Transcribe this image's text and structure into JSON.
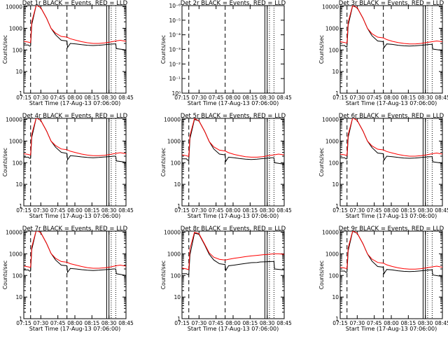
{
  "colors": {
    "events": "#000000",
    "lld": "#ff0000",
    "axes": "#000000",
    "background": "#ffffff"
  },
  "xlabel": "Start Time (17-Aug-13 07:06:00)",
  "ylabel": "Counts/sec",
  "xticks": [
    "07:15",
    "07:30",
    "07:45",
    "08:00",
    "08:15",
    "08:30",
    "08:45"
  ],
  "chart_data": [
    {
      "type": "line",
      "title": "Det 1r BLACK = Events, RED = LLD",
      "scale": "log",
      "ytick_labels": [
        "1",
        "10",
        "100",
        "1000",
        "10000"
      ],
      "xlim_min": [
        9,
        99
      ],
      "ylim_log10": [
        0,
        4.05
      ],
      "dashed_lines_min": [
        15,
        47
      ],
      "solid_lines_min": [
        82,
        84
      ],
      "dotted_lines_min": [
        86,
        90
      ],
      "series": [
        {
          "name": "Events",
          "x": [
            9,
            13,
            14,
            15,
            16,
            20,
            24,
            29,
            33,
            37,
            42,
            47,
            47.5,
            50,
            55,
            60,
            65,
            70,
            75,
            78,
            83,
            88,
            90,
            90.5,
            99
          ],
          "y": [
            170,
            170,
            150,
            150,
            1500,
            12000,
            9000,
            3000,
            1000,
            500,
            280,
            260,
            130,
            200,
            190,
            175,
            165,
            160,
            165,
            170,
            180,
            190,
            190,
            115,
            100
          ]
        },
        {
          "name": "LLD",
          "x": [
            9,
            13,
            14,
            15,
            16,
            20,
            24,
            29,
            33,
            37,
            42,
            47,
            50,
            55,
            60,
            65,
            70,
            75,
            80,
            85,
            90,
            94,
            99
          ],
          "y": [
            250,
            230,
            220,
            220,
            2000,
            12000,
            9000,
            3000,
            1000,
            600,
            420,
            390,
            330,
            280,
            240,
            215,
            200,
            200,
            210,
            230,
            260,
            280,
            250
          ]
        }
      ]
    },
    {
      "type": "line",
      "title": "Det 2r BLACK = Events, RED = LLD",
      "scale": "tiny",
      "ytick_labels": [
        "10⁰",
        "10⁻¹",
        "10⁻²",
        "10⁻³",
        "10⁻⁴",
        "10⁻⁵",
        "10⁻⁶"
      ],
      "xlim_min": [
        9,
        99
      ],
      "ylim_log10": [
        0,
        6
      ],
      "dashed_lines_min": [
        15,
        47
      ],
      "solid_lines_min": [
        82,
        84
      ],
      "dotted_lines_min": [
        86,
        90
      ],
      "series": []
    },
    {
      "type": "line",
      "title": "Det 3r BLACK = Events, RED = LLD",
      "scale": "log",
      "ytick_labels": [
        "1",
        "10",
        "100",
        "1000",
        "10000"
      ],
      "xlim_min": [
        9,
        99
      ],
      "ylim_log10": [
        0,
        4.05
      ],
      "dashed_lines_min": [
        15,
        47
      ],
      "solid_lines_min": [
        82,
        84
      ],
      "dotted_lines_min": [
        86,
        90
      ],
      "series": [
        {
          "name": "Events",
          "x": [
            9,
            13,
            14,
            15,
            16,
            20,
            24,
            29,
            33,
            37,
            42,
            47,
            47.5,
            50,
            55,
            60,
            65,
            70,
            75,
            78,
            83,
            88,
            90,
            90.5,
            99
          ],
          "y": [
            160,
            160,
            140,
            140,
            1400,
            11000,
            9000,
            3000,
            1000,
            450,
            260,
            240,
            125,
            190,
            180,
            165,
            155,
            150,
            155,
            160,
            170,
            180,
            180,
            110,
            95
          ]
        },
        {
          "name": "LLD",
          "x": [
            9,
            13,
            14,
            15,
            16,
            20,
            24,
            29,
            33,
            37,
            42,
            47,
            50,
            55,
            60,
            65,
            70,
            75,
            80,
            85,
            90,
            94,
            99
          ],
          "y": [
            240,
            220,
            210,
            210,
            1900,
            11500,
            9000,
            3000,
            1000,
            560,
            390,
            360,
            300,
            250,
            220,
            200,
            190,
            190,
            200,
            220,
            240,
            260,
            240
          ]
        }
      ]
    },
    {
      "type": "line",
      "title": "Det 4r BLACK = Events, RED = LLD",
      "scale": "log",
      "ytick_labels": [
        "1",
        "10",
        "100",
        "1000",
        "10000"
      ],
      "xlim_min": [
        9,
        99
      ],
      "ylim_log10": [
        0,
        4.05
      ],
      "dashed_lines_min": [
        15,
        47
      ],
      "solid_lines_min": [
        82,
        84
      ],
      "dotted_lines_min": [
        86,
        90
      ],
      "series": [
        {
          "name": "Events",
          "x": [
            9,
            13,
            14,
            15,
            16,
            20,
            24,
            29,
            33,
            37,
            42,
            47,
            47.5,
            50,
            55,
            60,
            65,
            70,
            75,
            78,
            83,
            88,
            90,
            90.5,
            99
          ],
          "y": [
            180,
            180,
            160,
            160,
            1500,
            12000,
            9000,
            3000,
            1000,
            520,
            300,
            270,
            135,
            210,
            200,
            185,
            175,
            170,
            175,
            180,
            190,
            200,
            200,
            120,
            105
          ]
        },
        {
          "name": "LLD",
          "x": [
            9,
            13,
            14,
            15,
            16,
            20,
            24,
            29,
            33,
            37,
            42,
            47,
            50,
            55,
            60,
            65,
            70,
            75,
            80,
            85,
            90,
            94,
            99
          ],
          "y": [
            260,
            240,
            230,
            230,
            2100,
            12000,
            9000,
            3000,
            1000,
            620,
            430,
            400,
            340,
            290,
            250,
            225,
            210,
            210,
            220,
            240,
            270,
            290,
            260
          ]
        }
      ]
    },
    {
      "type": "line",
      "title": "Det 5r BLACK = Events, RED = LLD",
      "scale": "log",
      "ytick_labels": [
        "1",
        "10",
        "100",
        "1000",
        "10000"
      ],
      "xlim_min": [
        9,
        99
      ],
      "ylim_log10": [
        0,
        4.05
      ],
      "dashed_lines_min": [
        15,
        47
      ],
      "solid_lines_min": [
        82,
        84
      ],
      "dotted_lines_min": [
        86,
        90
      ],
      "series": [
        {
          "name": "Events",
          "x": [
            9,
            13,
            14,
            15,
            16,
            20,
            24,
            29,
            33,
            37,
            42,
            47,
            47.5,
            50,
            55,
            60,
            65,
            70,
            75,
            78,
            83,
            88,
            90,
            90.5,
            99
          ],
          "y": [
            150,
            150,
            130,
            130,
            1300,
            10000,
            8500,
            2800,
            950,
            430,
            250,
            230,
            115,
            180,
            170,
            155,
            145,
            140,
            145,
            150,
            160,
            170,
            170,
            100,
            85
          ]
        },
        {
          "name": "LLD",
          "x": [
            9,
            13,
            14,
            15,
            16,
            20,
            24,
            29,
            33,
            37,
            42,
            47,
            50,
            55,
            60,
            65,
            70,
            75,
            80,
            85,
            90,
            94,
            99
          ],
          "y": [
            230,
            210,
            200,
            200,
            1800,
            11000,
            8500,
            2800,
            950,
            540,
            380,
            350,
            290,
            240,
            210,
            190,
            180,
            180,
            190,
            210,
            230,
            250,
            230
          ]
        }
      ]
    },
    {
      "type": "line",
      "title": "Det 6r BLACK = Events, RED = LLD",
      "scale": "log",
      "ytick_labels": [
        "1",
        "10",
        "100",
        "1000",
        "10000"
      ],
      "xlim_min": [
        9,
        99
      ],
      "ylim_log10": [
        0,
        4.05
      ],
      "dashed_lines_min": [
        15,
        47
      ],
      "solid_lines_min": [
        82,
        84
      ],
      "dotted_lines_min": [
        86,
        90
      ],
      "series": [
        {
          "name": "Events",
          "x": [
            9,
            13,
            14,
            15,
            16,
            20,
            24,
            29,
            33,
            37,
            42,
            47,
            47.5,
            50,
            55,
            60,
            65,
            70,
            75,
            78,
            83,
            88,
            90,
            90.5,
            99
          ],
          "y": [
            170,
            170,
            150,
            150,
            1500,
            12000,
            9000,
            3000,
            1000,
            500,
            280,
            260,
            130,
            200,
            190,
            175,
            165,
            160,
            165,
            170,
            180,
            190,
            190,
            110,
            95
          ]
        },
        {
          "name": "LLD",
          "x": [
            9,
            13,
            14,
            15,
            16,
            20,
            24,
            29,
            33,
            37,
            42,
            47,
            50,
            55,
            60,
            65,
            70,
            75,
            80,
            85,
            90,
            94,
            99
          ],
          "y": [
            250,
            230,
            220,
            220,
            2000,
            12000,
            9000,
            3000,
            1000,
            600,
            420,
            390,
            330,
            280,
            240,
            215,
            200,
            200,
            210,
            230,
            260,
            280,
            250
          ]
        }
      ]
    },
    {
      "type": "line",
      "title": "Det 7r BLACK = Events, RED = LLD",
      "scale": "log",
      "ytick_labels": [
        "1",
        "10",
        "100",
        "1000",
        "10000"
      ],
      "xlim_min": [
        9,
        99
      ],
      "ylim_log10": [
        0,
        4.05
      ],
      "dashed_lines_min": [
        15,
        47
      ],
      "solid_lines_min": [
        82,
        84
      ],
      "dotted_lines_min": [
        86,
        90
      ],
      "series": [
        {
          "name": "Events",
          "x": [
            9,
            13,
            14,
            15,
            16,
            20,
            24,
            29,
            33,
            37,
            42,
            47,
            47.5,
            50,
            55,
            60,
            65,
            70,
            75,
            78,
            83,
            88,
            90,
            90.5,
            99
          ],
          "y": [
            180,
            180,
            160,
            160,
            1600,
            12500,
            9500,
            3100,
            1050,
            520,
            300,
            280,
            140,
            210,
            200,
            185,
            175,
            170,
            175,
            180,
            190,
            200,
            200,
            120,
            100
          ]
        },
        {
          "name": "LLD",
          "x": [
            9,
            13,
            14,
            15,
            16,
            20,
            24,
            29,
            33,
            37,
            42,
            47,
            50,
            55,
            60,
            65,
            70,
            75,
            80,
            85,
            90,
            94,
            99
          ],
          "y": [
            270,
            250,
            240,
            240,
            2100,
            12500,
            9500,
            3100,
            1050,
            620,
            440,
            410,
            350,
            300,
            260,
            230,
            215,
            215,
            225,
            245,
            280,
            300,
            270
          ]
        }
      ]
    },
    {
      "type": "line",
      "title": "Det 8r BLACK = Events, RED = LLD",
      "scale": "log",
      "ytick_labels": [
        "1",
        "10",
        "100",
        "1000",
        "10000"
      ],
      "xlim_min": [
        9,
        99
      ],
      "ylim_log10": [
        0,
        4.05
      ],
      "dashed_lines_min": [
        15,
        47
      ],
      "solid_lines_min": [
        82,
        84
      ],
      "dotted_lines_min": [
        86,
        90
      ],
      "series": [
        {
          "name": "Events",
          "x": [
            9,
            13,
            14,
            15,
            16,
            20,
            24,
            29,
            33,
            37,
            42,
            47,
            47.5,
            50,
            55,
            60,
            65,
            70,
            75,
            78,
            83,
            88,
            90,
            90.5,
            99
          ],
          "y": [
            120,
            120,
            110,
            110,
            900,
            9000,
            8000,
            2600,
            950,
            520,
            350,
            320,
            170,
            280,
            300,
            330,
            360,
            390,
            400,
            420,
            430,
            440,
            440,
            200,
            180
          ]
        },
        {
          "name": "LLD",
          "x": [
            9,
            13,
            14,
            15,
            16,
            20,
            24,
            29,
            33,
            37,
            42,
            47,
            50,
            55,
            60,
            65,
            70,
            75,
            80,
            85,
            90,
            94,
            99
          ],
          "y": [
            220,
            200,
            190,
            190,
            1700,
            10000,
            8500,
            2800,
            1100,
            700,
            560,
            520,
            560,
            620,
            680,
            740,
            800,
            850,
            900,
            950,
            1000,
            1000,
            950
          ]
        }
      ]
    },
    {
      "type": "line",
      "title": "Det 9r BLACK = Events, RED = LLD",
      "scale": "log",
      "ytick_labels": [
        "1",
        "10",
        "100",
        "1000",
        "10000"
      ],
      "xlim_min": [
        9,
        99
      ],
      "ylim_log10": [
        0,
        4.05
      ],
      "dashed_lines_min": [
        15,
        47
      ],
      "solid_lines_min": [
        82,
        84
      ],
      "dotted_lines_min": [
        86,
        90
      ],
      "series": [
        {
          "name": "Events",
          "x": [
            9,
            13,
            14,
            15,
            16,
            20,
            24,
            29,
            33,
            37,
            42,
            47,
            47.5,
            50,
            55,
            60,
            65,
            70,
            75,
            78,
            83,
            88,
            90,
            90.5,
            99
          ],
          "y": [
            160,
            160,
            140,
            140,
            1400,
            11000,
            9000,
            3000,
            1000,
            460,
            260,
            240,
            120,
            190,
            180,
            165,
            155,
            150,
            155,
            160,
            170,
            180,
            180,
            105,
            90
          ]
        },
        {
          "name": "LLD",
          "x": [
            9,
            13,
            14,
            15,
            16,
            20,
            24,
            29,
            33,
            37,
            42,
            47,
            50,
            55,
            60,
            65,
            70,
            75,
            80,
            85,
            90,
            94,
            99
          ],
          "y": [
            240,
            220,
            210,
            210,
            1900,
            11500,
            9000,
            3000,
            1000,
            570,
            400,
            370,
            310,
            260,
            225,
            205,
            195,
            195,
            205,
            225,
            250,
            270,
            240
          ]
        }
      ]
    }
  ]
}
